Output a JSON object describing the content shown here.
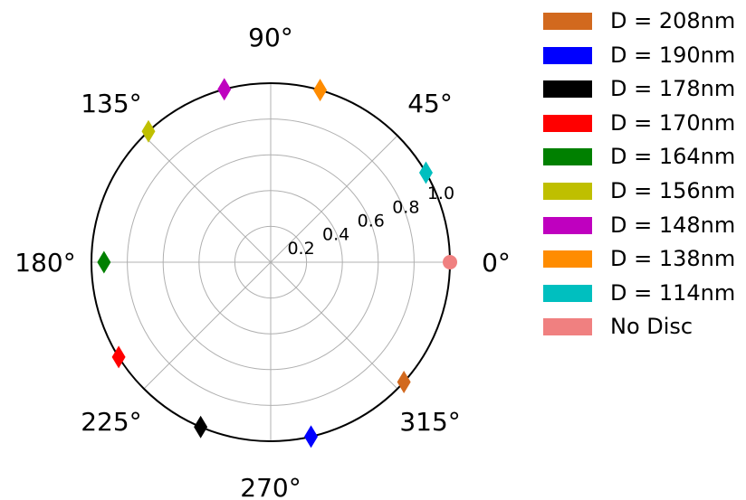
{
  "chart_data": {
    "type": "scatter",
    "projection": "polar",
    "title": "",
    "radial_range": [
      0,
      1.0
    ],
    "radial_ticks": [
      "0.2",
      "0.4",
      "0.6",
      "0.8",
      "1.0"
    ],
    "angle_ticks": [
      "0°",
      "45°",
      "90°",
      "135°",
      "180°",
      "225°",
      "270°",
      "315°"
    ],
    "grid": true,
    "legend_placement": "right",
    "series": [
      {
        "name": "D = 208nm",
        "color": "#d2691e",
        "marker": "diamond",
        "angle_deg": 318,
        "r": 1.0
      },
      {
        "name": "D = 190nm",
        "color": "#0000ff",
        "marker": "diamond",
        "angle_deg": 283,
        "r": 1.0
      },
      {
        "name": "D = 178nm",
        "color": "#000000",
        "marker": "diamond",
        "angle_deg": 247,
        "r": 1.0
      },
      {
        "name": "D = 170nm",
        "color": "#ff0000",
        "marker": "diamond",
        "angle_deg": 212,
        "r": 1.0
      },
      {
        "name": "D = 164nm",
        "color": "#008000",
        "marker": "diamond",
        "angle_deg": 180,
        "r": 0.93
      },
      {
        "name": "D = 156nm",
        "color": "#bfbf00",
        "marker": "diamond",
        "angle_deg": 133,
        "r": 1.0
      },
      {
        "name": "D = 148nm",
        "color": "#bf00bf",
        "marker": "diamond",
        "angle_deg": 105,
        "r": 1.0
      },
      {
        "name": "D = 138nm",
        "color": "#ff8c00",
        "marker": "diamond",
        "angle_deg": 74,
        "r": 1.0
      },
      {
        "name": "D = 114nm",
        "color": "#00bfbf",
        "marker": "diamond",
        "angle_deg": 30,
        "r": 1.0
      },
      {
        "name": "No Disc",
        "color": "#f08080",
        "marker": "circle",
        "angle_deg": 0,
        "r": 1.0
      }
    ]
  }
}
